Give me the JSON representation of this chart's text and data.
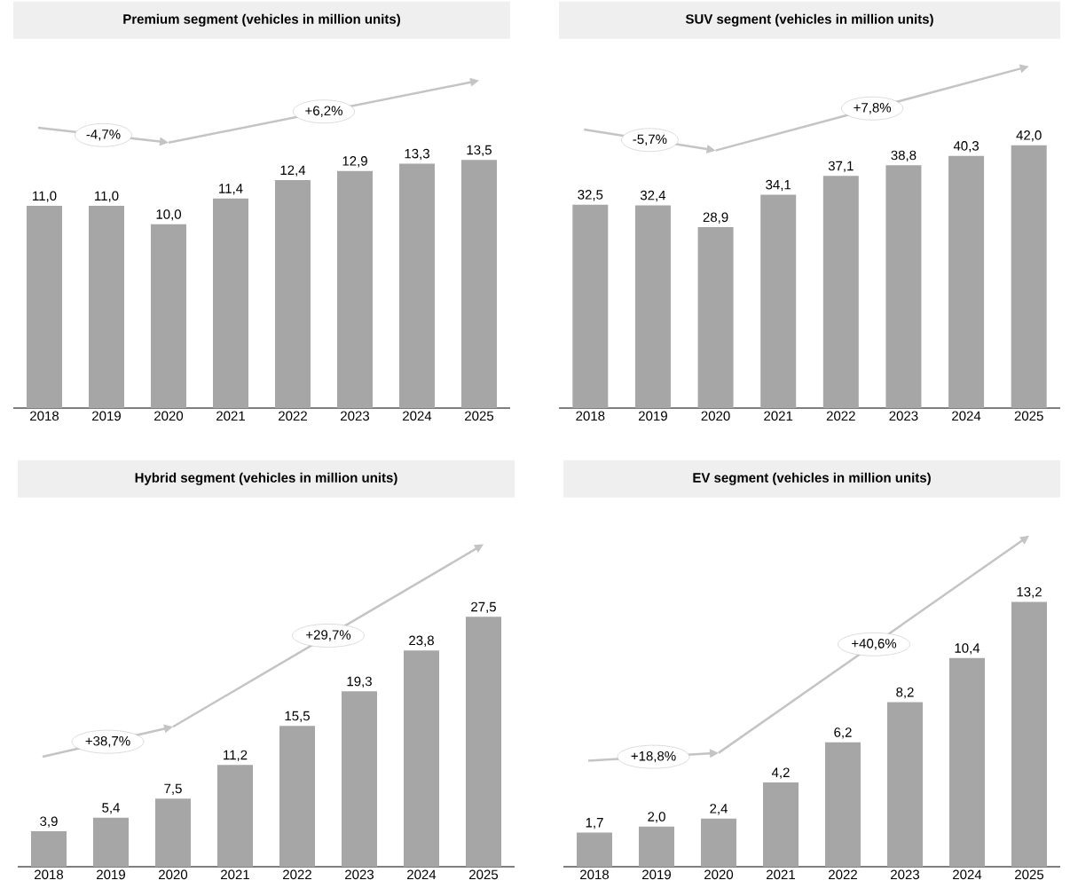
{
  "chart_data": [
    {
      "type": "bar",
      "title": "Premium segment (vehicles in million units)",
      "categories": [
        "2018",
        "2019",
        "2020",
        "2021",
        "2022",
        "2023",
        "2024",
        "2025"
      ],
      "values": [
        11.0,
        11.0,
        10.0,
        11.4,
        12.4,
        12.9,
        13.3,
        13.5
      ],
      "value_labels": [
        "11,0",
        "11,0",
        "10,0",
        "11,4",
        "12,4",
        "12,9",
        "13,3",
        "13,5"
      ],
      "color": "#a6a6a6",
      "annotations": [
        "-4,7%",
        "+6,2%"
      ]
    },
    {
      "type": "bar",
      "title": "SUV segment (vehicles in million units)",
      "categories": [
        "2018",
        "2019",
        "2020",
        "2021",
        "2022",
        "2023",
        "2024",
        "2025"
      ],
      "values": [
        32.5,
        32.4,
        28.9,
        34.1,
        37.1,
        38.8,
        40.3,
        42.0
      ],
      "value_labels": [
        "32,5",
        "32,4",
        "28,9",
        "34,1",
        "37,1",
        "38,8",
        "40,3",
        "42,0"
      ],
      "color": "#a6a6a6",
      "annotations": [
        "-5,7%",
        "+7,8%"
      ]
    },
    {
      "type": "bar",
      "title": "Hybrid segment (vehicles in million units)",
      "categories": [
        "2018",
        "2019",
        "2020",
        "2021",
        "2022",
        "2023",
        "2024",
        "2025"
      ],
      "values": [
        3.9,
        5.4,
        7.5,
        11.2,
        15.5,
        19.3,
        23.8,
        27.5
      ],
      "value_labels": [
        "3,9",
        "5,4",
        "7,5",
        "11,2",
        "15,5",
        "19,3",
        "23,8",
        "27,5"
      ],
      "color": "#a6a6a6",
      "annotations": [
        "+38,7%",
        "+29,7%"
      ]
    },
    {
      "type": "bar",
      "title": "EV segment (vehicles in million units)",
      "categories": [
        "2018",
        "2019",
        "2020",
        "2021",
        "2022",
        "2023",
        "2024",
        "2025"
      ],
      "values": [
        1.7,
        2.0,
        2.4,
        4.2,
        6.2,
        8.2,
        10.4,
        13.2
      ],
      "value_labels": [
        "1,7",
        "2,0",
        "2,4",
        "4,2",
        "6,2",
        "8,2",
        "10,4",
        "13,2"
      ],
      "color": "#a6a6a6",
      "annotations": [
        "+18,8%",
        "+40,6%"
      ]
    }
  ]
}
